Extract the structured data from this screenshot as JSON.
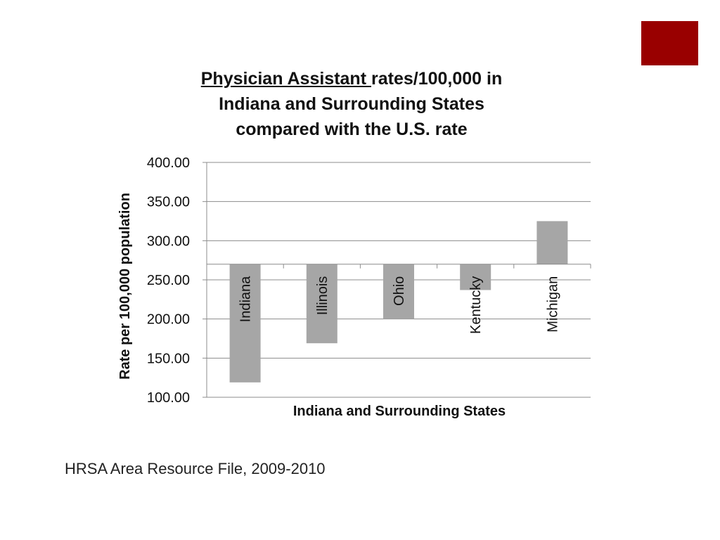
{
  "slide": {
    "accent_color": "#990000",
    "source_text": "HRSA Area Resource File, 2009-2010"
  },
  "chart_data": {
    "type": "bar",
    "title_underlined": "Physician Assistant ",
    "title_rest_line1": "rates/100,000 in",
    "title_line2": "Indiana and Surrounding States",
    "title_line3": "compared with the U.S. rate",
    "xlabel": "Indiana and Surrounding States",
    "ylabel": "Rate per 100,000 population",
    "ylim": [
      100,
      400
    ],
    "yticks": [
      "100.00",
      "150.00",
      "200.00",
      "250.00",
      "300.00",
      "350.00",
      "400.00"
    ],
    "baseline": 270,
    "categories": [
      "Indiana",
      "Illinois",
      "Ohio",
      "Kentucky",
      "Michigan"
    ],
    "values": [
      119,
      169,
      200,
      237,
      325
    ],
    "bar_color": "#a6a6a6",
    "grid": true
  }
}
